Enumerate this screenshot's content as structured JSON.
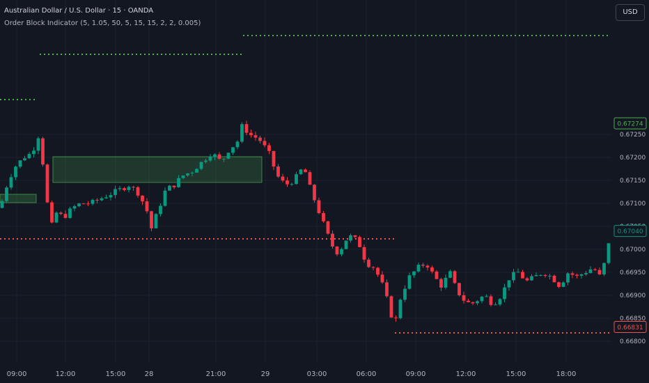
{
  "header": {
    "symbol_title": "Australian Dollar / U.S. Dollar · 15 · OANDA",
    "indicator_title": "Order Block Indicator (5, 1.05, 50, 5, 15, 15, 2, 2, 0.005)",
    "currency_button": "USD"
  },
  "price_axis": {
    "ticks": [
      "0.67250",
      "0.67200",
      "0.67150",
      "0.67100",
      "0.67050",
      "0.67000",
      "0.66950",
      "0.66900",
      "0.66850",
      "0.66800"
    ]
  },
  "time_axis": {
    "ticks": [
      "09:00",
      "12:00",
      "15:00",
      "28",
      "21:00",
      "29",
      "03:00",
      "06:00",
      "09:00",
      "12:00",
      "15:00",
      "18:00"
    ]
  },
  "price_labels": {
    "upper_level": "0.67274",
    "current_price": "0.67040",
    "lower_level": "0.66831"
  },
  "colors": {
    "background": "#131722",
    "up_candle": "#089981",
    "down_candle": "#f23645",
    "bull_level": "#4caf50",
    "bear_level": "#f05350",
    "bullish_block_fill": "#4caf50",
    "axis_text": "#b2b5be",
    "grid": "#1e222d"
  }
}
